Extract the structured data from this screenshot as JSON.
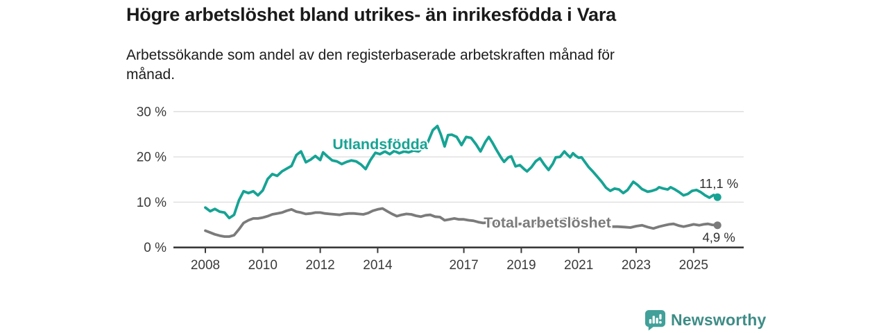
{
  "header": {
    "title": "Högre arbetslöshet bland utrikes- än inrikesfödda i Vara",
    "subtitle_lines": [
      "Arbetssökande som andel av den registerbaserade arbetskraften månad för",
      "månad."
    ]
  },
  "branding": {
    "logo_text": "Newsworthy"
  },
  "chart_data": {
    "type": "line",
    "title": "Högre arbetslöshet bland utrikes- än inrikesfödda i Vara",
    "subtitle": "Arbetssökande som andel av den registerbaserade arbetskraften månad för månad.",
    "xlabel": "",
    "ylabel": "",
    "ylim": [
      0,
      32
    ],
    "xlim": [
      2006.9,
      2026.8
    ],
    "grid": "horizontal-only",
    "legend_position": "inline-labels",
    "x_ticks": [
      2008,
      2010,
      2012,
      2014,
      2017,
      2019,
      2021,
      2023,
      2025
    ],
    "y_ticks": [
      {
        "value": 30,
        "label": "30 %"
      },
      {
        "value": 20,
        "label": "20 %"
      },
      {
        "value": 10,
        "label": "10 %"
      },
      {
        "value": 0,
        "label": "0 %"
      }
    ],
    "colors": {
      "utlandsfodda": "#16A394",
      "total": "#7B7B7B",
      "grid": "#DBDBDB",
      "axis": "#3A3A3A",
      "tick_label": "#3A3A3A",
      "value_label": "#2F2F2F"
    },
    "series": [
      {
        "name": "Utlandsfödda",
        "color": "#16A394",
        "end_label": "11,1 %",
        "end_value": 11.1,
        "points": [
          [
            2008.0,
            8.8
          ],
          [
            2008.17,
            8.0
          ],
          [
            2008.33,
            8.5
          ],
          [
            2008.5,
            7.9
          ],
          [
            2008.67,
            7.7
          ],
          [
            2008.83,
            6.5
          ],
          [
            2009.0,
            7.2
          ],
          [
            2009.17,
            10.4
          ],
          [
            2009.33,
            12.4
          ],
          [
            2009.5,
            12.0
          ],
          [
            2009.67,
            12.4
          ],
          [
            2009.83,
            11.5
          ],
          [
            2010.0,
            12.6
          ],
          [
            2010.17,
            15.1
          ],
          [
            2010.33,
            16.2
          ],
          [
            2010.5,
            15.8
          ],
          [
            2010.67,
            16.8
          ],
          [
            2010.83,
            17.4
          ],
          [
            2011.0,
            18.0
          ],
          [
            2011.17,
            20.4
          ],
          [
            2011.33,
            21.2
          ],
          [
            2011.5,
            18.8
          ],
          [
            2011.67,
            19.4
          ],
          [
            2011.83,
            20.2
          ],
          [
            2012.0,
            19.3
          ],
          [
            2012.1,
            21.0
          ],
          [
            2012.25,
            20.1
          ],
          [
            2012.42,
            19.2
          ],
          [
            2012.58,
            19.0
          ],
          [
            2012.75,
            18.4
          ],
          [
            2012.92,
            18.9
          ],
          [
            2013.08,
            19.2
          ],
          [
            2013.25,
            19.0
          ],
          [
            2013.42,
            18.3
          ],
          [
            2013.58,
            17.3
          ],
          [
            2013.75,
            19.3
          ],
          [
            2013.92,
            20.9
          ],
          [
            2014.08,
            20.6
          ],
          [
            2014.25,
            21.2
          ],
          [
            2014.42,
            20.6
          ],
          [
            2014.58,
            21.3
          ],
          [
            2014.75,
            20.8
          ],
          [
            2014.92,
            21.2
          ],
          [
            2015.08,
            21.0
          ],
          [
            2015.25,
            21.4
          ],
          [
            2015.42,
            21.2
          ],
          [
            2015.58,
            22.0
          ],
          [
            2015.75,
            23.3
          ],
          [
            2015.92,
            25.9
          ],
          [
            2016.08,
            26.8
          ],
          [
            2016.2,
            24.9
          ],
          [
            2016.33,
            22.3
          ],
          [
            2016.45,
            24.8
          ],
          [
            2016.58,
            24.9
          ],
          [
            2016.75,
            24.4
          ],
          [
            2016.92,
            22.6
          ],
          [
            2017.08,
            24.4
          ],
          [
            2017.25,
            24.2
          ],
          [
            2017.42,
            22.8
          ],
          [
            2017.58,
            21.2
          ],
          [
            2017.75,
            23.3
          ],
          [
            2017.87,
            24.4
          ],
          [
            2018.0,
            23.1
          ],
          [
            2018.13,
            21.6
          ],
          [
            2018.3,
            19.8
          ],
          [
            2018.4,
            18.9
          ],
          [
            2018.55,
            19.9
          ],
          [
            2018.65,
            20.1
          ],
          [
            2018.8,
            17.9
          ],
          [
            2018.95,
            18.2
          ],
          [
            2019.1,
            17.3
          ],
          [
            2019.2,
            16.8
          ],
          [
            2019.35,
            17.7
          ],
          [
            2019.5,
            19.0
          ],
          [
            2019.65,
            19.7
          ],
          [
            2019.8,
            18.3
          ],
          [
            2019.95,
            17.1
          ],
          [
            2020.1,
            18.5
          ],
          [
            2020.2,
            19.9
          ],
          [
            2020.35,
            20.0
          ],
          [
            2020.5,
            21.2
          ],
          [
            2020.6,
            20.5
          ],
          [
            2020.7,
            19.9
          ],
          [
            2020.8,
            20.8
          ],
          [
            2020.9,
            20.2
          ],
          [
            2021.0,
            19.8
          ],
          [
            2021.1,
            19.9
          ],
          [
            2021.2,
            19.0
          ],
          [
            2021.35,
            17.7
          ],
          [
            2021.5,
            16.7
          ],
          [
            2021.65,
            15.6
          ],
          [
            2021.8,
            14.5
          ],
          [
            2021.95,
            13.2
          ],
          [
            2022.1,
            12.5
          ],
          [
            2022.25,
            13.0
          ],
          [
            2022.4,
            12.8
          ],
          [
            2022.55,
            12.0
          ],
          [
            2022.7,
            12.7
          ],
          [
            2022.9,
            14.5
          ],
          [
            2023.05,
            13.8
          ],
          [
            2023.2,
            12.9
          ],
          [
            2023.4,
            12.3
          ],
          [
            2023.55,
            12.5
          ],
          [
            2023.7,
            12.8
          ],
          [
            2023.8,
            13.3
          ],
          [
            2023.95,
            13.0
          ],
          [
            2024.1,
            12.8
          ],
          [
            2024.2,
            13.3
          ],
          [
            2024.35,
            12.8
          ],
          [
            2024.5,
            12.2
          ],
          [
            2024.65,
            11.5
          ],
          [
            2024.8,
            11.8
          ],
          [
            2024.95,
            12.5
          ],
          [
            2025.1,
            12.7
          ],
          [
            2025.25,
            12.2
          ],
          [
            2025.4,
            11.5
          ],
          [
            2025.55,
            11.0
          ],
          [
            2025.7,
            11.6
          ],
          [
            2025.83,
            11.1
          ]
        ]
      },
      {
        "name": "Total arbetslöshet",
        "color": "#7B7B7B",
        "end_label": "4,9 %",
        "end_value": 4.9,
        "points": [
          [
            2008.0,
            3.7
          ],
          [
            2008.17,
            3.3
          ],
          [
            2008.33,
            2.9
          ],
          [
            2008.5,
            2.6
          ],
          [
            2008.67,
            2.4
          ],
          [
            2008.83,
            2.4
          ],
          [
            2009.0,
            2.7
          ],
          [
            2009.17,
            4.0
          ],
          [
            2009.33,
            5.4
          ],
          [
            2009.5,
            6.0
          ],
          [
            2009.67,
            6.4
          ],
          [
            2009.83,
            6.4
          ],
          [
            2010.0,
            6.6
          ],
          [
            2010.17,
            6.9
          ],
          [
            2010.33,
            7.3
          ],
          [
            2010.5,
            7.5
          ],
          [
            2010.67,
            7.7
          ],
          [
            2010.83,
            8.1
          ],
          [
            2011.0,
            8.4
          ],
          [
            2011.17,
            7.9
          ],
          [
            2011.33,
            7.7
          ],
          [
            2011.5,
            7.4
          ],
          [
            2011.67,
            7.5
          ],
          [
            2011.83,
            7.7
          ],
          [
            2012.0,
            7.7
          ],
          [
            2012.17,
            7.5
          ],
          [
            2012.33,
            7.4
          ],
          [
            2012.5,
            7.3
          ],
          [
            2012.67,
            7.2
          ],
          [
            2012.83,
            7.4
          ],
          [
            2013.0,
            7.5
          ],
          [
            2013.17,
            7.5
          ],
          [
            2013.33,
            7.4
          ],
          [
            2013.5,
            7.3
          ],
          [
            2013.67,
            7.6
          ],
          [
            2013.83,
            8.1
          ],
          [
            2014.0,
            8.4
          ],
          [
            2014.17,
            8.6
          ],
          [
            2014.33,
            8.0
          ],
          [
            2014.5,
            7.4
          ],
          [
            2014.67,
            6.9
          ],
          [
            2014.83,
            7.2
          ],
          [
            2015.0,
            7.4
          ],
          [
            2015.17,
            7.3
          ],
          [
            2015.33,
            7.0
          ],
          [
            2015.5,
            6.8
          ],
          [
            2015.67,
            7.1
          ],
          [
            2015.83,
            7.2
          ],
          [
            2016.0,
            6.8
          ],
          [
            2016.17,
            6.7
          ],
          [
            2016.33,
            6.0
          ],
          [
            2016.5,
            6.2
          ],
          [
            2016.67,
            6.4
          ],
          [
            2016.83,
            6.2
          ],
          [
            2017.0,
            6.2
          ],
          [
            2017.17,
            6.0
          ],
          [
            2017.33,
            5.9
          ],
          [
            2017.5,
            5.6
          ],
          [
            2017.67,
            5.4
          ],
          [
            2017.83,
            5.5
          ],
          [
            2018.0,
            5.4
          ],
          [
            2018.25,
            5.2
          ],
          [
            2018.5,
            5.3
          ],
          [
            2018.75,
            5.1
          ],
          [
            2019.0,
            5.2
          ],
          [
            2019.25,
            5.3
          ],
          [
            2019.5,
            5.4
          ],
          [
            2019.75,
            5.3
          ],
          [
            2020.0,
            5.5
          ],
          [
            2020.25,
            6.0
          ],
          [
            2020.5,
            6.3
          ],
          [
            2020.75,
            6.1
          ],
          [
            2021.0,
            5.9
          ],
          [
            2021.25,
            5.6
          ],
          [
            2021.5,
            5.3
          ],
          [
            2021.75,
            5.0
          ],
          [
            2022.0,
            4.8
          ],
          [
            2022.17,
            4.6
          ],
          [
            2022.35,
            4.6
          ],
          [
            2022.6,
            4.5
          ],
          [
            2022.8,
            4.4
          ],
          [
            2023.0,
            4.7
          ],
          [
            2023.2,
            4.9
          ],
          [
            2023.4,
            4.5
          ],
          [
            2023.6,
            4.2
          ],
          [
            2023.8,
            4.6
          ],
          [
            2024.0,
            4.9
          ],
          [
            2024.15,
            5.1
          ],
          [
            2024.3,
            5.2
          ],
          [
            2024.5,
            4.8
          ],
          [
            2024.65,
            4.6
          ],
          [
            2024.8,
            4.8
          ],
          [
            2025.0,
            5.1
          ],
          [
            2025.2,
            4.9
          ],
          [
            2025.35,
            5.1
          ],
          [
            2025.5,
            5.2
          ],
          [
            2025.65,
            5.0
          ],
          [
            2025.83,
            4.9
          ]
        ]
      }
    ]
  }
}
